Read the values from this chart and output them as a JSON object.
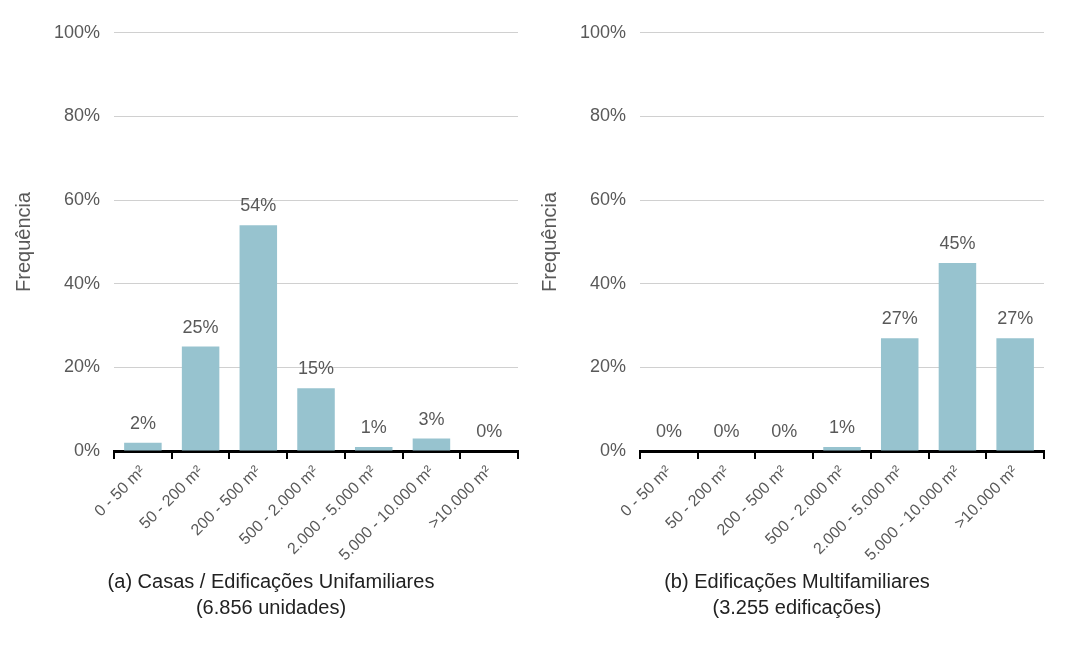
{
  "chart_data": [
    {
      "type": "bar",
      "ylabel": "Frequência",
      "categories": [
        "0 - 50 m²",
        "50 - 200 m²",
        "200 - 500 m²",
        "500 - 2.000 m²",
        "2.000 - 5.000 m²",
        "5.000 - 10.000 m²",
        ">10.000 m²"
      ],
      "values": [
        2,
        25,
        54,
        15,
        1,
        3,
        0
      ],
      "value_labels": [
        "2%",
        "25%",
        "54%",
        "15%",
        "1%",
        "3%",
        "0%"
      ],
      "color": "#97c3cf",
      "ylim": [
        0,
        100
      ],
      "yticks": [
        {
          "value": 0,
          "label": "0%"
        },
        {
          "value": 20,
          "label": "20%"
        },
        {
          "value": 40,
          "label": "40%"
        },
        {
          "value": 60,
          "label": "60%"
        },
        {
          "value": 80,
          "label": "80%"
        },
        {
          "value": 100,
          "label": "100%"
        }
      ],
      "grid": "y",
      "legend": false,
      "annotations": [
        "(a) Casas / Edificações Unifamiliares",
        "(6.856 unidades)"
      ]
    },
    {
      "type": "bar",
      "ylabel": "Frequência",
      "categories": [
        "0 - 50 m²",
        "50 - 200 m²",
        "200 - 500 m²",
        "500 - 2.000 m²",
        "2.000 - 5.000 m²",
        "5.000 - 10.000 m²",
        ">10.000 m²"
      ],
      "values": [
        0,
        0,
        0,
        1,
        27,
        45,
        27
      ],
      "value_labels": [
        "0%",
        "0%",
        "0%",
        "1%",
        "27%",
        "45%",
        "27%"
      ],
      "color": "#97c3cf",
      "ylim": [
        0,
        100
      ],
      "yticks": [
        {
          "value": 0,
          "label": "0%"
        },
        {
          "value": 20,
          "label": "20%"
        },
        {
          "value": 40,
          "label": "40%"
        },
        {
          "value": 60,
          "label": "60%"
        },
        {
          "value": 80,
          "label": "80%"
        },
        {
          "value": 100,
          "label": "100%"
        }
      ],
      "grid": "y",
      "legend": false,
      "annotations": [
        "(b) Edificações Multifamiliares",
        "(3.255 edificações)"
      ]
    }
  ]
}
